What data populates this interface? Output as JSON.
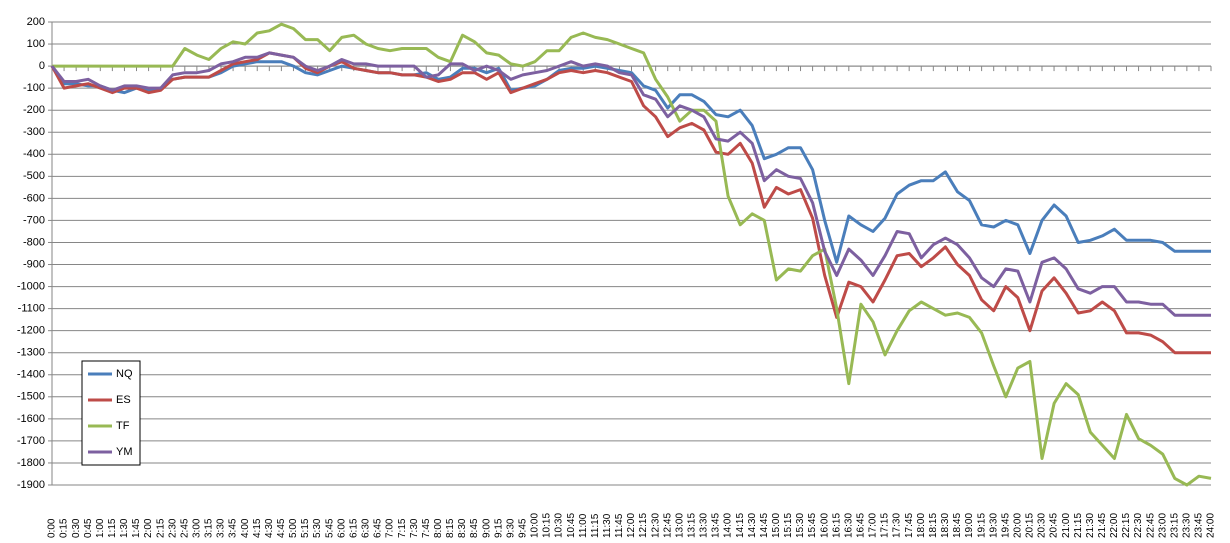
{
  "chart_data": {
    "type": "line",
    "categories": [
      "0:00",
      "0:15",
      "0:30",
      "0:45",
      "1:00",
      "1:15",
      "1:30",
      "1:45",
      "2:00",
      "2:15",
      "2:30",
      "2:45",
      "3:00",
      "3:15",
      "3:30",
      "3:45",
      "4:00",
      "4:15",
      "4:30",
      "4:45",
      "5:00",
      "5:15",
      "5:30",
      "5:45",
      "6:00",
      "6:15",
      "6:30",
      "6:45",
      "7:00",
      "7:15",
      "7:30",
      "7:45",
      "8:00",
      "8:15",
      "8:30",
      "8:45",
      "9:00",
      "9:15",
      "9:30",
      "9:45",
      "10:00",
      "10:15",
      "10:30",
      "10:45",
      "11:00",
      "11:15",
      "11:30",
      "11:45",
      "12:00",
      "12:15",
      "12:30",
      "12:45",
      "13:00",
      "13:15",
      "13:30",
      "13:45",
      "14:00",
      "14:15",
      "14:30",
      "14:45",
      "15:00",
      "15:15",
      "15:30",
      "15:45",
      "16:00",
      "16:15",
      "16:30",
      "16:45",
      "17:00",
      "17:15",
      "17:30",
      "17:45",
      "18:00",
      "18:15",
      "18:30",
      "18:45",
      "19:00",
      "19:15",
      "19:30",
      "19:45",
      "20:00",
      "20:15",
      "20:30",
      "20:45",
      "21:00",
      "21:15",
      "21:30",
      "21:45",
      "22:00",
      "22:15",
      "22:30",
      "22:45",
      "23:00",
      "23:15",
      "23:30",
      "23:45",
      "24:00"
    ],
    "series": [
      {
        "name": "NQ",
        "color": "#4a7ebb",
        "values": [
          0,
          -80,
          -80,
          -90,
          -90,
          -110,
          -120,
          -100,
          -110,
          -100,
          -60,
          -50,
          -50,
          -50,
          -30,
          0,
          10,
          20,
          20,
          20,
          0,
          -30,
          -40,
          -20,
          0,
          -10,
          -20,
          -30,
          -30,
          -40,
          -40,
          -30,
          -60,
          -50,
          -10,
          -10,
          -30,
          -10,
          -110,
          -100,
          -90,
          -60,
          -20,
          -10,
          -10,
          0,
          -10,
          -20,
          -30,
          -90,
          -110,
          -190,
          -130,
          -130,
          -160,
          -220,
          -230,
          -200,
          -270,
          -420,
          -400,
          -370,
          -370,
          -470,
          -700,
          -890,
          -680,
          -720,
          -750,
          -690,
          -580,
          -540,
          -520,
          -520,
          -480,
          -570,
          -610,
          -720,
          -730,
          -700,
          -720,
          -850,
          -700,
          -630,
          -680,
          -800,
          -790,
          -770,
          -740,
          -790,
          -790,
          -790,
          -800,
          -840,
          -840,
          -840,
          -840
        ]
      },
      {
        "name": "ES",
        "color": "#be4b48",
        "values": [
          0,
          -100,
          -90,
          -80,
          -100,
          -120,
          -100,
          -100,
          -120,
          -110,
          -60,
          -50,
          -50,
          -50,
          -20,
          10,
          20,
          30,
          60,
          50,
          40,
          -10,
          -30,
          0,
          20,
          -10,
          -20,
          -30,
          -30,
          -40,
          -40,
          -50,
          -70,
          -60,
          -30,
          -30,
          -60,
          -30,
          -120,
          -100,
          -80,
          -60,
          -30,
          -20,
          -30,
          -20,
          -30,
          -50,
          -70,
          -180,
          -230,
          -320,
          -280,
          -260,
          -290,
          -390,
          -400,
          -350,
          -440,
          -640,
          -550,
          -580,
          -560,
          -690,
          -950,
          -1140,
          -980,
          -1000,
          -1070,
          -970,
          -860,
          -850,
          -910,
          -870,
          -820,
          -900,
          -950,
          -1060,
          -1110,
          -1000,
          -1050,
          -1200,
          -1020,
          -960,
          -1030,
          -1120,
          -1110,
          -1070,
          -1110,
          -1210,
          -1210,
          -1220,
          -1250,
          -1300,
          -1300,
          -1300,
          -1300
        ]
      },
      {
        "name": "TF",
        "color": "#98b954",
        "values": [
          0,
          0,
          0,
          0,
          0,
          0,
          0,
          0,
          0,
          0,
          0,
          80,
          50,
          30,
          80,
          110,
          100,
          150,
          160,
          190,
          170,
          120,
          120,
          70,
          130,
          140,
          100,
          80,
          70,
          80,
          80,
          80,
          40,
          20,
          140,
          110,
          60,
          50,
          10,
          0,
          20,
          70,
          70,
          130,
          150,
          130,
          120,
          100,
          80,
          60,
          -60,
          -140,
          -250,
          -200,
          -200,
          -250,
          -590,
          -720,
          -670,
          -700,
          -970,
          -920,
          -930,
          -860,
          -830,
          -1100,
          -1440,
          -1080,
          -1160,
          -1310,
          -1200,
          -1110,
          -1070,
          -1100,
          -1130,
          -1120,
          -1140,
          -1210,
          -1360,
          -1500,
          -1370,
          -1340,
          -1780,
          -1530,
          -1440,
          -1490,
          -1660,
          -1720,
          -1780,
          -1580,
          -1690,
          -1720,
          -1760,
          -1870,
          -1900,
          -1860,
          -1870
        ]
      },
      {
        "name": "YM",
        "color": "#7d60a0",
        "values": [
          0,
          -70,
          -70,
          -60,
          -90,
          -110,
          -90,
          -90,
          -100,
          -100,
          -40,
          -30,
          -30,
          -20,
          10,
          20,
          40,
          40,
          60,
          50,
          40,
          0,
          -20,
          0,
          30,
          10,
          10,
          0,
          0,
          0,
          0,
          -50,
          -40,
          10,
          10,
          -20,
          0,
          -20,
          -60,
          -40,
          -30,
          -20,
          0,
          20,
          0,
          10,
          0,
          -30,
          -40,
          -130,
          -150,
          -230,
          -180,
          -200,
          -230,
          -330,
          -340,
          -300,
          -350,
          -520,
          -470,
          -500,
          -510,
          -620,
          -840,
          -950,
          -830,
          -880,
          -950,
          -860,
          -750,
          -760,
          -870,
          -810,
          -780,
          -810,
          -870,
          -960,
          -1000,
          -920,
          -930,
          -1070,
          -890,
          -870,
          -920,
          -1010,
          -1030,
          -1000,
          -1000,
          -1070,
          -1070,
          -1080,
          -1080,
          -1130,
          -1130,
          -1130,
          -1130
        ]
      }
    ],
    "ylim": [
      -1900,
      200
    ],
    "yticks": [
      -1900,
      -1800,
      -1700,
      -1600,
      -1500,
      -1400,
      -1300,
      -1200,
      -1100,
      -1000,
      -900,
      -800,
      -700,
      -600,
      -500,
      -400,
      -300,
      -200,
      -100,
      0,
      100,
      200
    ],
    "grid": true,
    "legend": "lower left"
  }
}
